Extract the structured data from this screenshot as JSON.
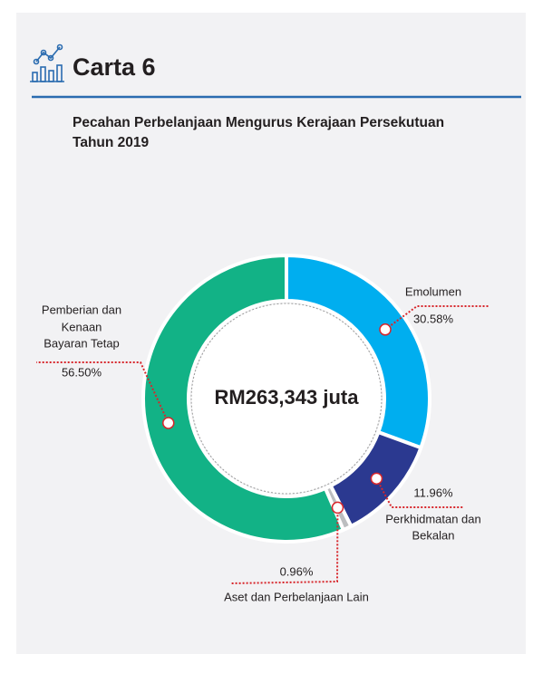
{
  "chart_data": {
    "type": "donut",
    "heading": "Carta 6",
    "title": "Pecahan Perbelanjaan Mengurus Kerajaan Persekutuan",
    "title_line2": "Tahun 2019",
    "center_label": "RM263,343 juta",
    "categories": [
      [
        "Emolumen"
      ],
      [
        "Perkhidmatan dan",
        "Bekalan"
      ],
      [
        "Aset dan Perbelanjaan Lain"
      ],
      [
        "Pemberian dan",
        "Kenaan",
        "Bayaran Tetap"
      ]
    ],
    "values": [
      30.58,
      11.96,
      0.96,
      56.5
    ],
    "value_labels": [
      "30.58%",
      "11.96%",
      "0.96%",
      "56.50%"
    ],
    "colors": [
      "#00aeef",
      "#2b3990",
      "#bcbec0",
      "#12b286"
    ]
  }
}
